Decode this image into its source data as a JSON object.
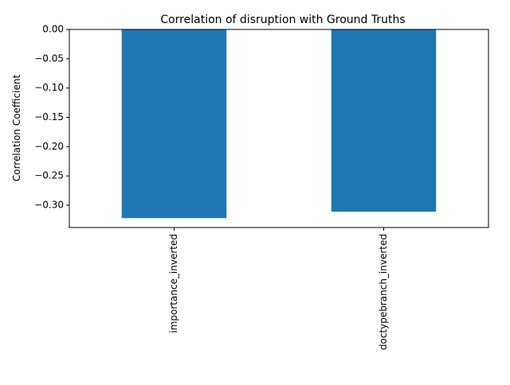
{
  "chart_data": {
    "type": "bar",
    "title": "Correlation of disruption with Ground Truths",
    "xlabel": "",
    "ylabel": "Correlation Coefficient",
    "categories": [
      "importance_inverted",
      "doctypebranch_inverted"
    ],
    "values": [
      -0.322,
      -0.311
    ],
    "ylim": [
      -0.338,
      0.0
    ],
    "yticks": [
      0.0,
      -0.05,
      -0.1,
      -0.15,
      -0.2,
      -0.25,
      -0.3
    ],
    "ytick_labels": [
      "0.00",
      "−0.05",
      "−0.10",
      "−0.15",
      "−0.20",
      "−0.25",
      "−0.30"
    ],
    "bar_color": "#1f77b4",
    "grid": false,
    "legend": "none"
  }
}
